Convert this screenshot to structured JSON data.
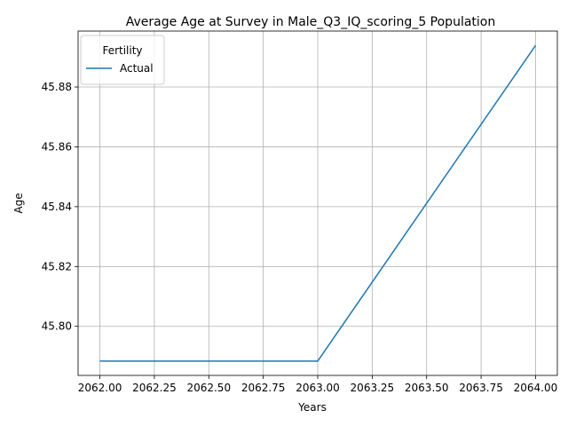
{
  "chart_data": {
    "type": "line",
    "title": "Average Age at Survey in Male_Q3_IQ_scoring_5 Population",
    "xlabel": "Years",
    "ylabel": "Age",
    "x_ticks": [
      2062.0,
      2062.25,
      2062.5,
      2062.75,
      2063.0,
      2063.25,
      2063.5,
      2063.75,
      2064.0
    ],
    "x_tick_labels": [
      "2062.00",
      "2062.25",
      "2062.50",
      "2062.75",
      "2063.00",
      "2063.25",
      "2063.50",
      "2063.75",
      "2064.00"
    ],
    "y_ticks": [
      45.8,
      45.82,
      45.84,
      45.86,
      45.88
    ],
    "y_tick_labels": [
      "45.80",
      "45.82",
      "45.84",
      "45.86",
      "45.88"
    ],
    "xlim": [
      2061.9,
      2064.1
    ],
    "ylim": [
      45.7836,
      45.8987
    ],
    "grid": true,
    "legend": {
      "title": "Fertility",
      "placement": "top-left"
    },
    "series": [
      {
        "name": "Actual",
        "color": "#1f77b4",
        "x": [
          2062,
          2063,
          2064
        ],
        "y": [
          45.7884,
          45.7884,
          45.8939
        ]
      }
    ]
  }
}
